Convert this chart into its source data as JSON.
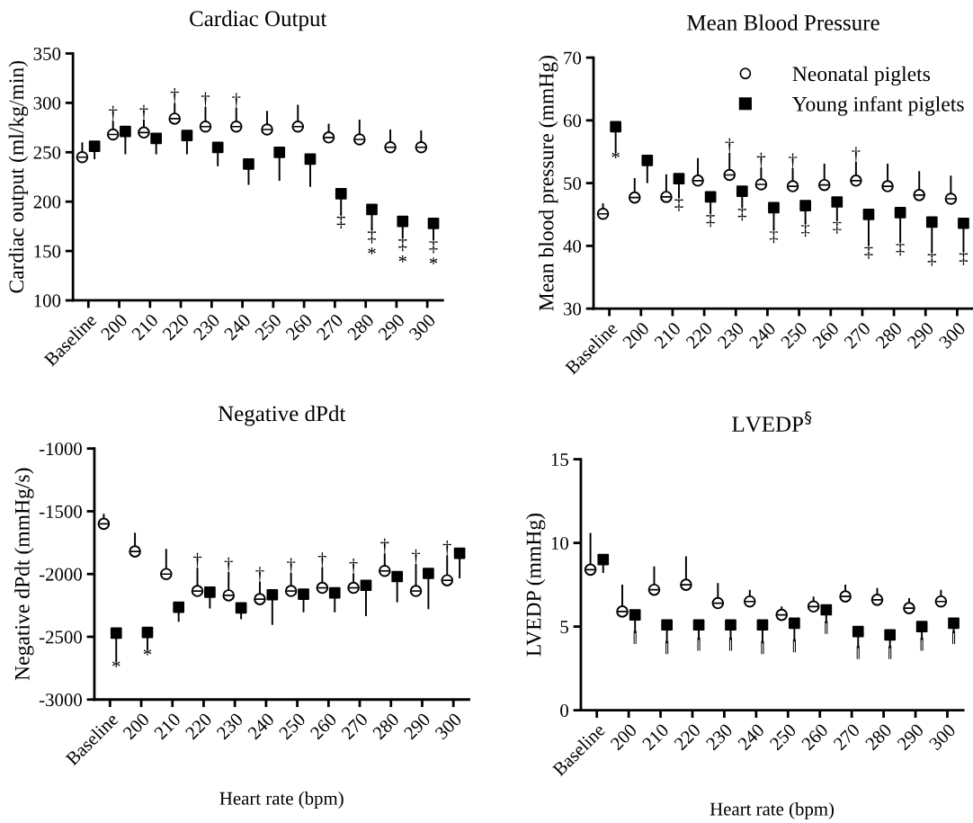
{
  "chart_data": [
    {
      "type": "scatter",
      "title": "Cardiac Output",
      "ylabel": "Cardiac output (ml/kg/min)",
      "categories": [
        "Baseline",
        "200",
        "210",
        "220",
        "230",
        "240",
        "250",
        "260",
        "270",
        "280",
        "290",
        "300"
      ],
      "ylim": [
        100,
        350
      ],
      "yticks": [
        100,
        150,
        200,
        250,
        300,
        350
      ],
      "grid": false,
      "legend": false,
      "series": [
        {
          "color": "#000000",
          "marker": "circle",
          "values": [
            245,
            268,
            270,
            284,
            276,
            276,
            273,
            276,
            265,
            263,
            255,
            255
          ],
          "errors": [
            [
              245,
              260
            ],
            [
              268,
              282
            ],
            [
              270,
              283
            ],
            [
              284,
              300
            ],
            [
              276,
              296
            ],
            [
              276,
              295
            ],
            [
              273,
              292
            ],
            [
              276,
              298
            ],
            [
              265,
              279
            ],
            [
              263,
              283
            ],
            [
              255,
              273
            ],
            [
              255,
              272
            ]
          ]
        },
        {
          "color": "#000000",
          "marker": "square",
          "values": [
            256,
            271,
            264,
            267,
            255,
            238,
            250,
            243,
            208,
            192,
            180,
            178
          ],
          "errors": [
            [
              243,
              256
            ],
            [
              248,
              271
            ],
            [
              248,
              264
            ],
            [
              248,
              267
            ],
            [
              236,
              255
            ],
            [
              217,
              238
            ],
            [
              221,
              250
            ],
            [
              215,
              243
            ],
            [
              186,
              208
            ],
            [
              171,
              192
            ],
            [
              163,
              180
            ],
            [
              161,
              178
            ]
          ]
        }
      ],
      "annotations": [
        {
          "text": "†",
          "x": "200",
          "y": 268
        },
        {
          "text": "†",
          "x": "210",
          "y": 270
        },
        {
          "text": "†",
          "x": "220",
          "y": 284
        },
        {
          "text": "†",
          "x": "230",
          "y": 276
        },
        {
          "text": "†",
          "x": "240",
          "y": 276
        },
        {
          "text": "‡",
          "x": "270",
          "y": 208
        },
        {
          "text": "‡",
          "x": "280",
          "y": 192
        },
        {
          "text": "‡",
          "x": "290",
          "y": 180
        },
        {
          "text": "‡",
          "x": "300",
          "y": 178
        },
        {
          "text": "*",
          "x": "280",
          "y": 192
        },
        {
          "text": "*",
          "x": "290",
          "y": 180
        },
        {
          "text": "*",
          "x": "300",
          "y": 178
        }
      ]
    },
    {
      "type": "scatter",
      "title": "Mean Blood Pressure",
      "ylabel": "Mean blood pressure (mmHg)",
      "categories": [
        "Baseline",
        "200",
        "210",
        "220",
        "230",
        "240",
        "250",
        "260",
        "270",
        "280",
        "290",
        "300"
      ],
      "ylim": [
        30,
        70
      ],
      "yticks": [
        30,
        40,
        50,
        60,
        70
      ],
      "grid": false,
      "legend": "top right",
      "series": [
        {
          "name": "Neonatal piglets",
          "color": "#000000",
          "marker": "circle",
          "values": [
            45.1,
            47.7,
            47.8,
            50.4,
            51.3,
            49.8,
            49.5,
            49.7,
            50.4,
            49.5,
            48.1,
            47.5
          ],
          "errors": [
            [
              45.1,
              46.8
            ],
            [
              47.7,
              50.8
            ],
            [
              47.8,
              51.4
            ],
            [
              50.4,
              54.0
            ],
            [
              51.3,
              54.8
            ],
            [
              49.8,
              52.5
            ],
            [
              49.5,
              52.4
            ],
            [
              49.7,
              53.1
            ],
            [
              50.4,
              53.4
            ],
            [
              49.5,
              53.1
            ],
            [
              48.1,
              51.9
            ],
            [
              47.5,
              51.2
            ]
          ]
        },
        {
          "name": "Young infant piglets",
          "color": "#000000",
          "marker": "square",
          "values": [
            59.0,
            53.6,
            50.7,
            47.8,
            48.7,
            46.1,
            46.4,
            47.0,
            45.0,
            45.3,
            43.8,
            43.6
          ],
          "errors": [
            [
              54.8,
              59.0
            ],
            [
              50.0,
              53.6
            ],
            [
              47.6,
              50.7
            ],
            [
              45.1,
              47.8
            ],
            [
              46.1,
              48.7
            ],
            [
              42.5,
              46.1
            ],
            [
              43.5,
              46.4
            ],
            [
              44.0,
              47.0
            ],
            [
              40.0,
              45.0
            ],
            [
              40.5,
              45.3
            ],
            [
              38.9,
              43.8
            ],
            [
              39.0,
              43.6
            ]
          ]
        }
      ],
      "annotations": [
        {
          "text": "*",
          "x": "Baseline",
          "y": 59.0
        },
        {
          "text": "†",
          "x": "230",
          "y": 51.3
        },
        {
          "text": "†",
          "x": "240",
          "y": 49.8
        },
        {
          "text": "†",
          "x": "250",
          "y": 49.5
        },
        {
          "text": "†",
          "x": "270",
          "y": 50.4
        },
        {
          "text": "‡",
          "x": "210",
          "y": 50.7
        },
        {
          "text": "‡",
          "x": "220",
          "y": 47.8
        },
        {
          "text": "‡",
          "x": "230",
          "y": 48.7
        },
        {
          "text": "‡",
          "x": "240",
          "y": 46.1
        },
        {
          "text": "‡",
          "x": "250",
          "y": 46.4
        },
        {
          "text": "‡",
          "x": "260",
          "y": 47.0
        },
        {
          "text": "‡",
          "x": "270",
          "y": 45.0
        },
        {
          "text": "‡",
          "x": "280",
          "y": 45.3
        },
        {
          "text": "‡",
          "x": "290",
          "y": 43.8
        },
        {
          "text": "‡",
          "x": "300",
          "y": 43.6
        }
      ]
    },
    {
      "type": "scatter",
      "title": "Negative dPdt",
      "ylabel": "Negative dPdt (mmHg/s)",
      "xlabel": "Heart rate (bpm)",
      "categories": [
        "Baseline",
        "200",
        "210",
        "220",
        "230",
        "240",
        "250",
        "260",
        "270",
        "280",
        "290",
        "300"
      ],
      "ylim": [
        -3000,
        -1000
      ],
      "yticks": [
        -3000,
        -2500,
        -2000,
        -1500,
        -1000
      ],
      "grid": false,
      "legend": false,
      "series": [
        {
          "color": "#000000",
          "marker": "circle",
          "values": [
            -1600,
            -1820,
            -2000,
            -2135,
            -2170,
            -2200,
            -2135,
            -2110,
            -2110,
            -1975,
            -2135,
            -2050
          ],
          "errors": [
            [
              -1600,
              -1520
            ],
            [
              -1820,
              -1670
            ],
            [
              -2000,
              -1800
            ],
            [
              -2135,
              -1950
            ],
            [
              -2170,
              -1985
            ],
            [
              -2200,
              -2060
            ],
            [
              -2135,
              -1990
            ],
            [
              -2110,
              -1945
            ],
            [
              -2110,
              -1995
            ],
            [
              -1975,
              -1835
            ],
            [
              -2135,
              -1920
            ],
            [
              -2050,
              -1850
            ]
          ]
        },
        {
          "color": "#000000",
          "marker": "square",
          "values": [
            -2470,
            -2465,
            -2265,
            -2145,
            -2270,
            -2165,
            -2160,
            -2150,
            -2090,
            -2020,
            -1995,
            -1835
          ],
          "errors": [
            [
              -2700,
              -2470
            ],
            [
              -2605,
              -2465
            ],
            [
              -2380,
              -2265
            ],
            [
              -2275,
              -2145
            ],
            [
              -2360,
              -2270
            ],
            [
              -2405,
              -2165
            ],
            [
              -2305,
              -2160
            ],
            [
              -2305,
              -2150
            ],
            [
              -2335,
              -2090
            ],
            [
              -2225,
              -2020
            ],
            [
              -2280,
              -1995
            ],
            [
              -2035,
              -1835
            ]
          ]
        }
      ],
      "annotations": [
        {
          "text": "*",
          "x": "Baseline",
          "y": -2470
        },
        {
          "text": "*",
          "x": "200",
          "y": -2465
        },
        {
          "text": "†",
          "x": "220",
          "y": -2135
        },
        {
          "text": "†",
          "x": "230",
          "y": -2170
        },
        {
          "text": "†",
          "x": "240",
          "y": -2200
        },
        {
          "text": "†",
          "x": "250",
          "y": -2135
        },
        {
          "text": "†",
          "x": "260",
          "y": -2110
        },
        {
          "text": "†",
          "x": "270",
          "y": -2110
        },
        {
          "text": "†",
          "x": "280",
          "y": -1975
        },
        {
          "text": "†",
          "x": "290",
          "y": -2135
        },
        {
          "text": "†",
          "x": "300",
          "y": -2050
        }
      ]
    },
    {
      "type": "scatter",
      "title": "LVEDP$^{§}$",
      "ylabel": "LVEDP (mmHg)",
      "xlabel": "Heart rate (bpm)",
      "categories": [
        "Baseline",
        "200",
        "210",
        "220",
        "230",
        "240",
        "250",
        "260",
        "270",
        "280",
        "290",
        "300"
      ],
      "ylim": [
        0,
        15
      ],
      "yticks": [
        0,
        5,
        10,
        15
      ],
      "grid": false,
      "legend": false,
      "series": [
        {
          "color": "#000000",
          "marker": "circle",
          "values": [
            8.4,
            5.9,
            7.2,
            7.5,
            6.4,
            6.5,
            5.7,
            6.2,
            6.8,
            6.6,
            6.1,
            6.5
          ],
          "errors": [
            [
              8.4,
              10.6
            ],
            [
              5.9,
              7.5
            ],
            [
              7.2,
              8.6
            ],
            [
              7.5,
              9.2
            ],
            [
              6.4,
              7.6
            ],
            [
              6.5,
              7.2
            ],
            [
              5.7,
              6.2
            ],
            [
              6.2,
              6.8
            ],
            [
              6.8,
              7.5
            ],
            [
              6.6,
              7.3
            ],
            [
              6.1,
              6.7
            ],
            [
              6.5,
              7.2
            ]
          ]
        },
        {
          "color": "#000000",
          "marker": "square",
          "values": [
            9.0,
            5.7,
            5.1,
            5.1,
            5.1,
            5.1,
            5.2,
            6.0,
            4.7,
            4.5,
            5.0,
            5.2
          ],
          "errors": [
            [
              8.2,
              9.0
            ],
            [
              4.6,
              5.7
            ],
            [
              4.0,
              5.1
            ],
            [
              4.2,
              5.1
            ],
            [
              4.2,
              5.1
            ],
            [
              4.0,
              5.1
            ],
            [
              4.1,
              5.2
            ],
            [
              5.2,
              6.0
            ],
            [
              3.7,
              4.7
            ],
            [
              3.7,
              4.5
            ],
            [
              4.2,
              5.0
            ],
            [
              4.6,
              5.2
            ]
          ]
        }
      ],
      "annotations": [
        {
          "text": "‖",
          "x": "200",
          "y": 5.7
        },
        {
          "text": "‖",
          "x": "210",
          "y": 5.1
        },
        {
          "text": "‖",
          "x": "220",
          "y": 5.1
        },
        {
          "text": "‖",
          "x": "230",
          "y": 5.1
        },
        {
          "text": "‖",
          "x": "240",
          "y": 5.1
        },
        {
          "text": "‖",
          "x": "250",
          "y": 5.2
        },
        {
          "text": "‖",
          "x": "260",
          "y": 6.0
        },
        {
          "text": "‖",
          "x": "270",
          "y": 4.7
        },
        {
          "text": "‖",
          "x": "280",
          "y": 4.5
        },
        {
          "text": "‖",
          "x": "290",
          "y": 5.0
        },
        {
          "text": "‖",
          "x": "300",
          "y": 5.2
        }
      ]
    }
  ]
}
